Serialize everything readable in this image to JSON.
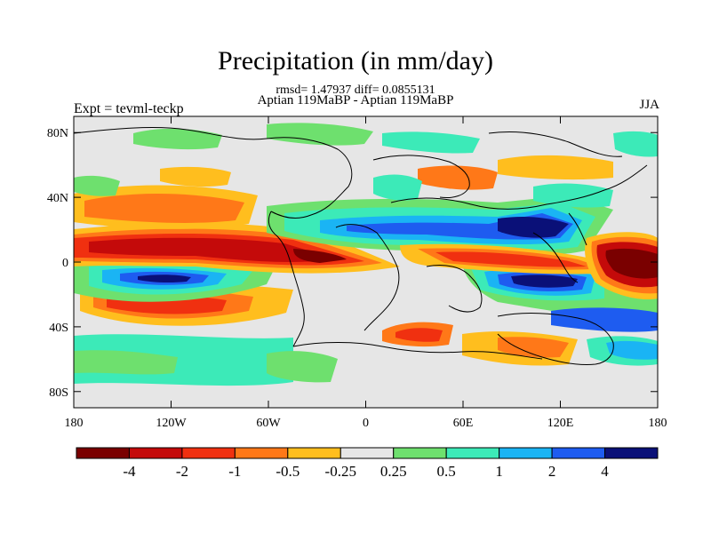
{
  "header": {
    "title": "Precipitation (in mm/day)",
    "stats": "rmsd= 1.47937 diff= 0.0855131",
    "subtitle": "Aptian   119MaBP - Aptian   119MaBP",
    "expt": "Expt = tevml-teckp",
    "season": "JJA"
  },
  "axes": {
    "x_ticks": [
      "180",
      "120W",
      "60W",
      "0",
      "60E",
      "120E",
      "180"
    ],
    "x_values": [
      -180,
      -120,
      -60,
      0,
      60,
      120,
      180
    ],
    "y_ticks": [
      "80N",
      "40N",
      "0",
      "40S",
      "80S"
    ],
    "y_values": [
      80,
      40,
      0,
      -40,
      -80
    ],
    "lon_range": [
      -180,
      180
    ],
    "lat_range": [
      -90,
      90
    ]
  },
  "colorbar": {
    "colors": [
      "#7a0000",
      "#c40a0a",
      "#f03010",
      "#ff7818",
      "#ffbe1e",
      "#e6e6e6",
      "#6ee06e",
      "#3ceab8",
      "#1ab4f4",
      "#1e5cf0",
      "#0a1078"
    ],
    "labels": [
      "-4",
      "-2",
      "-1",
      "-0.5",
      "-0.25",
      "0.25",
      "0.5",
      "1",
      "2",
      "4"
    ]
  },
  "field_colors": {
    "background": "#e6e6e6",
    "strong_dry": "#7a0000",
    "dry": "#c40a0a",
    "dry_mod": "#f03010",
    "dry_weak": "#ff7818",
    "dry_slight": "#ffbe1e",
    "wet_slight": "#6ee06e",
    "wet_weak": "#3ceab8",
    "wet_mod": "#1ab4f4",
    "wet": "#1e5cf0",
    "strong_wet": "#0a1078"
  }
}
